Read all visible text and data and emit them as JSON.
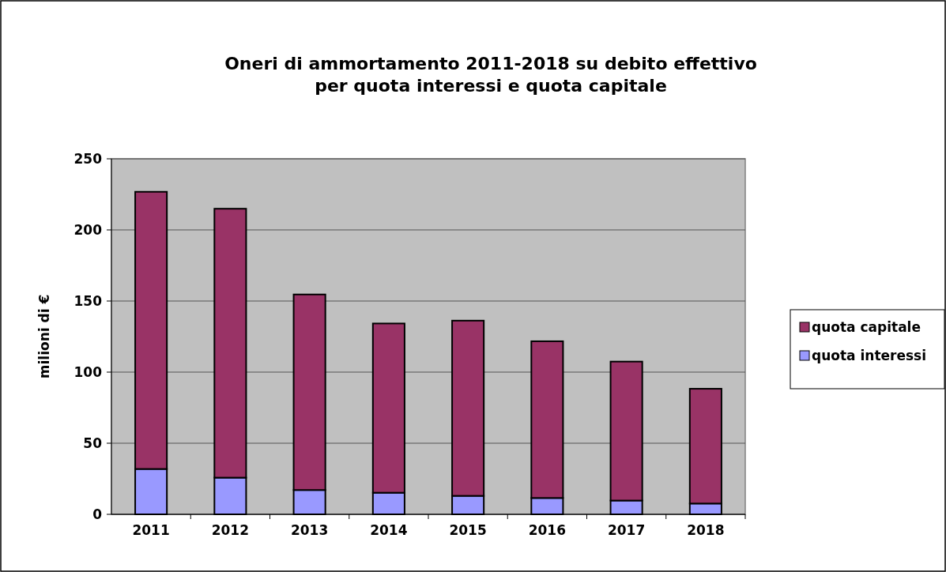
{
  "chart_data": {
    "type": "bar",
    "title": "Oneri di ammortamento 2011-2018 su debito effettivo\nper quota interessi e quota capitale",
    "ylabel": "milioni di €",
    "categories": [
      "2011",
      "2012",
      "2013",
      "2014",
      "2015",
      "2016",
      "2017",
      "2018"
    ],
    "stacked": true,
    "series": [
      {
        "name": "quota interessi",
        "color": "#9999ff",
        "values": [
          31.9,
          25.8,
          17.1,
          15.2,
          13.0,
          11.5,
          9.7,
          7.6
        ]
      },
      {
        "name": "quota capitale",
        "color": "#993366",
        "values": [
          194.9,
          189.1,
          137.5,
          119.0,
          123.2,
          110.2,
          97.7,
          80.7
        ]
      }
    ],
    "ylim": [
      0,
      250
    ],
    "yticks": [
      0,
      50,
      100,
      150,
      200,
      250
    ],
    "grid": "y",
    "legend": "right"
  }
}
